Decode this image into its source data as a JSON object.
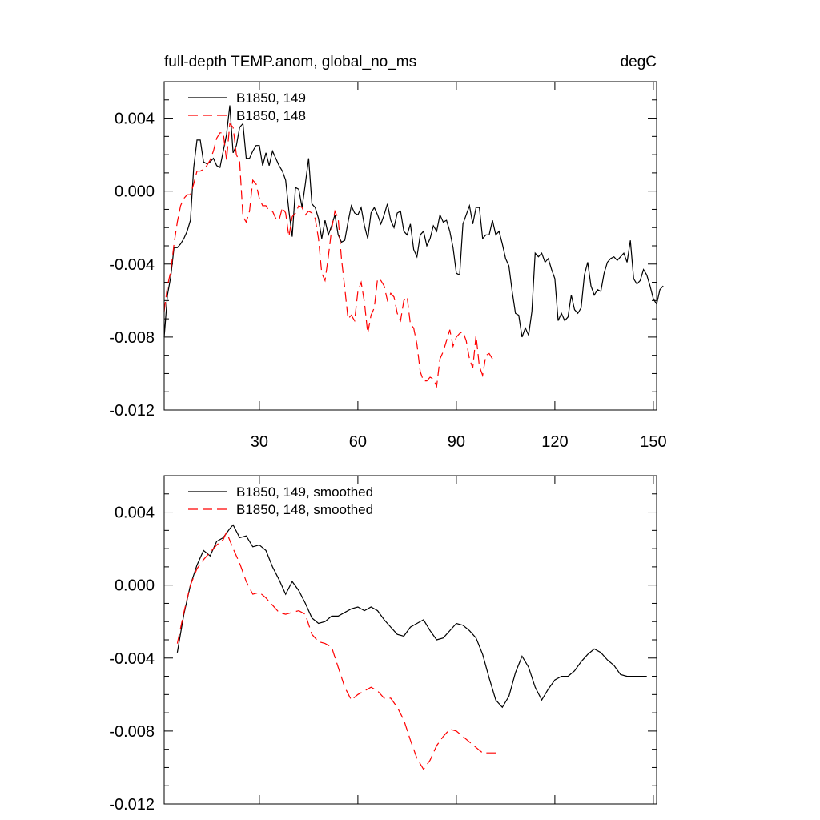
{
  "chart_data": [
    {
      "type": "line",
      "title": "full-depth TEMP.anom, global_no_ms",
      "units": "degC",
      "xlabel": "",
      "ylabel": "",
      "xlim": [
        1,
        151
      ],
      "ylim": [
        -0.012,
        0.006
      ],
      "x_ticks": [
        30,
        60,
        90,
        120,
        150
      ],
      "y_ticks": [
        0.004,
        0.0,
        -0.004,
        -0.008,
        -0.012
      ],
      "x_tick_labels": [
        "30",
        "60",
        "90",
        "120",
        "150"
      ],
      "y_tick_labels": [
        "0.004",
        "0.000",
        "-0.004",
        "-0.008",
        "-0.012"
      ],
      "legend_position": "top-left",
      "series": [
        {
          "name": "B1850, 149",
          "color": "#000000",
          "dash": "solid",
          "x_start": 1,
          "values": [
            -0.008,
            -0.0057,
            -0.0047,
            -0.0031,
            -0.0031,
            -0.0029,
            -0.0026,
            -0.0022,
            -0.0016,
            0.0013,
            0.0028,
            0.0028,
            0.0016,
            0.0015,
            0.0016,
            0.0018,
            0.0014,
            0.0013,
            0.0022,
            0.0031,
            0.0047,
            0.0021,
            0.0025,
            0.0035,
            0.0037,
            0.0018,
            0.0018,
            0.0022,
            0.0025,
            0.0025,
            0.0014,
            0.0021,
            0.0014,
            0.0022,
            0.0018,
            0.0014,
            0.0011,
            0.0006,
            -0.0011,
            -0.0025,
            0.0002,
            0.0001,
            -0.0009,
            0.0004,
            0.0018,
            -0.0007,
            -0.0009,
            -0.0015,
            -0.0026,
            -0.0016,
            -0.0024,
            -0.0019,
            -0.0013,
            -0.0024,
            -0.0028,
            -0.0027,
            -0.0017,
            -0.0008,
            -0.0012,
            -0.0013,
            -0.0009,
            -0.0019,
            -0.0026,
            -0.0012,
            -0.0009,
            -0.0013,
            -0.0018,
            -0.0013,
            -0.0007,
            -0.0016,
            -0.002,
            -0.0012,
            -0.0011,
            -0.0022,
            -0.0024,
            -0.0018,
            -0.0032,
            -0.0036,
            -0.0024,
            -0.0022,
            -0.003,
            -0.0026,
            -0.0019,
            -0.0022,
            -0.0013,
            -0.0017,
            -0.0016,
            -0.0022,
            -0.0031,
            -0.0045,
            -0.0046,
            -0.0018,
            -0.0013,
            -0.0008,
            -0.0018,
            -0.0009,
            -0.0009,
            -0.0026,
            -0.0024,
            -0.0024,
            -0.0016,
            -0.0024,
            -0.0022,
            -0.0029,
            -0.0037,
            -0.0041,
            -0.0055,
            -0.0067,
            -0.0068,
            -0.008,
            -0.0075,
            -0.0079,
            -0.0066,
            -0.0034,
            -0.0036,
            -0.0034,
            -0.0039,
            -0.0037,
            -0.0043,
            -0.0048,
            -0.0071,
            -0.0067,
            -0.0071,
            -0.0069,
            -0.0057,
            -0.0065,
            -0.0067,
            -0.0064,
            -0.0046,
            -0.0039,
            -0.0052,
            -0.0057,
            -0.0054,
            -0.0055,
            -0.0045,
            -0.0039,
            -0.0037,
            -0.0036,
            -0.0038,
            -0.0036,
            -0.0034,
            -0.0039,
            -0.0027,
            -0.0048,
            -0.0051,
            -0.0049,
            -0.0043,
            -0.0046,
            -0.0052,
            -0.0059,
            -0.0062,
            -0.0054,
            -0.0052
          ]
        },
        {
          "name": "B1850, 148",
          "color": "#ff0000",
          "dash": "dashed",
          "x_start": 1,
          "values": [
            -0.0066,
            -0.0052,
            -0.0044,
            -0.0029,
            -0.0017,
            -0.0008,
            -0.0004,
            -0.0002,
            -0.0002,
            0.0004,
            0.0011,
            0.0011,
            0.0012,
            0.0014,
            0.0017,
            0.0022,
            0.0029,
            0.0032,
            0.0032,
            0.0017,
            0.0037,
            0.0035,
            0.002,
            0.0016,
            -0.0014,
            -0.0017,
            -0.0011,
            0.0006,
            0.0004,
            -0.0004,
            -0.0008,
            -0.0008,
            -0.0011,
            -0.0011,
            -0.0015,
            -0.0016,
            -0.0009,
            -0.0012,
            -0.0025,
            -0.0014,
            -0.0012,
            -0.0008,
            -0.0009,
            -0.0013,
            -0.0011,
            -0.0012,
            -0.0015,
            -0.0026,
            -0.0045,
            -0.0049,
            -0.0036,
            -0.0021,
            -0.0011,
            -0.0015,
            -0.0037,
            -0.0053,
            -0.007,
            -0.0068,
            -0.0071,
            -0.0055,
            -0.005,
            -0.0061,
            -0.0078,
            -0.0068,
            -0.0064,
            -0.0048,
            -0.0049,
            -0.0052,
            -0.006,
            -0.0056,
            -0.0058,
            -0.0067,
            -0.0071,
            -0.006,
            -0.0058,
            -0.0073,
            -0.0075,
            -0.0084,
            -0.0099,
            -0.0104,
            -0.0104,
            -0.0102,
            -0.0103,
            -0.0107,
            -0.0092,
            -0.0088,
            -0.0082,
            -0.0076,
            -0.0085,
            -0.008,
            -0.0078,
            -0.0077,
            -0.0082,
            -0.0092,
            -0.0097,
            -0.0079,
            -0.0096,
            -0.0101,
            -0.009,
            -0.0089,
            -0.0092
          ]
        }
      ]
    },
    {
      "type": "line",
      "title": "",
      "xlabel": "",
      "ylabel": "",
      "xlim": [
        1,
        151
      ],
      "ylim": [
        -0.012,
        0.006
      ],
      "x_ticks": [
        30,
        60,
        90,
        120,
        150
      ],
      "y_ticks": [
        0.004,
        0.0,
        -0.004,
        -0.008,
        -0.012
      ],
      "y_tick_labels": [
        "0.004",
        "0.000",
        "-0.004",
        "-0.008",
        "-0.012"
      ],
      "legend_position": "top-left",
      "series": [
        {
          "name": "B1850, 149, smoothed",
          "color": "#000000",
          "dash": "solid",
          "x": [
            5,
            7,
            9,
            11,
            13,
            15,
            17,
            19,
            21,
            22,
            24,
            26,
            28,
            30,
            32,
            34,
            36,
            38,
            40,
            42,
            44,
            46,
            48,
            50,
            52,
            54,
            56,
            58,
            60,
            62,
            64,
            66,
            68,
            70,
            72,
            74,
            76,
            78,
            80,
            82,
            84,
            86,
            88,
            90,
            92,
            94,
            96,
            98,
            100,
            102,
            104,
            106,
            108,
            110,
            112,
            114,
            116,
            118,
            120,
            122,
            124,
            126,
            128,
            130,
            132,
            134,
            136,
            138,
            140,
            142,
            144,
            146,
            148
          ],
          "values": [
            -0.0037,
            -0.0016,
            0.0,
            0.0011,
            0.0019,
            0.0016,
            0.0024,
            0.0026,
            0.0031,
            0.0033,
            0.0026,
            0.0027,
            0.0021,
            0.0022,
            0.0019,
            0.001,
            0.0003,
            -0.0005,
            0.0002,
            -0.0003,
            -0.001,
            -0.0018,
            -0.0021,
            -0.002,
            -0.0017,
            -0.0017,
            -0.0015,
            -0.0013,
            -0.0012,
            -0.0014,
            -0.0012,
            -0.0014,
            -0.0019,
            -0.0023,
            -0.0027,
            -0.0028,
            -0.0023,
            -0.0021,
            -0.0019,
            -0.0025,
            -0.003,
            -0.0029,
            -0.0025,
            -0.0021,
            -0.0022,
            -0.0025,
            -0.0029,
            -0.0038,
            -0.0051,
            -0.0063,
            -0.0067,
            -0.0061,
            -0.0048,
            -0.0039,
            -0.0045,
            -0.0056,
            -0.0063,
            -0.0057,
            -0.0052,
            -0.005,
            -0.005,
            -0.0047,
            -0.0042,
            -0.0038,
            -0.0035,
            -0.0037,
            -0.0041,
            -0.0044,
            -0.0049,
            -0.005,
            -0.005,
            -0.005,
            -0.005
          ]
        },
        {
          "name": "B1850, 148, smoothed",
          "color": "#ff0000",
          "dash": "dashed",
          "x": [
            5,
            7,
            9,
            11,
            13,
            15,
            17,
            19,
            20,
            22,
            24,
            26,
            28,
            30,
            32,
            34,
            36,
            38,
            40,
            42,
            44,
            46,
            48,
            50,
            52,
            54,
            56,
            58,
            60,
            62,
            64,
            66,
            68,
            70,
            72,
            74,
            76,
            78,
            80,
            82,
            84,
            86,
            88,
            90,
            92,
            94,
            96,
            98,
            100,
            102
          ],
          "values": [
            -0.0032,
            -0.0015,
            0.0,
            0.0009,
            0.0014,
            0.0018,
            0.0022,
            0.0025,
            0.0029,
            0.002,
            0.0012,
            0.0002,
            -0.0005,
            -0.0004,
            -0.0007,
            -0.0011,
            -0.0015,
            -0.0016,
            -0.0015,
            -0.0014,
            -0.0016,
            -0.0027,
            -0.0031,
            -0.0032,
            -0.0034,
            -0.0045,
            -0.0056,
            -0.0063,
            -0.006,
            -0.0058,
            -0.0056,
            -0.0058,
            -0.0062,
            -0.0062,
            -0.0067,
            -0.0074,
            -0.0085,
            -0.0095,
            -0.0101,
            -0.0096,
            -0.0088,
            -0.0083,
            -0.0079,
            -0.008,
            -0.0083,
            -0.0086,
            -0.0089,
            -0.0092,
            -0.0092,
            -0.0092
          ]
        }
      ]
    }
  ]
}
